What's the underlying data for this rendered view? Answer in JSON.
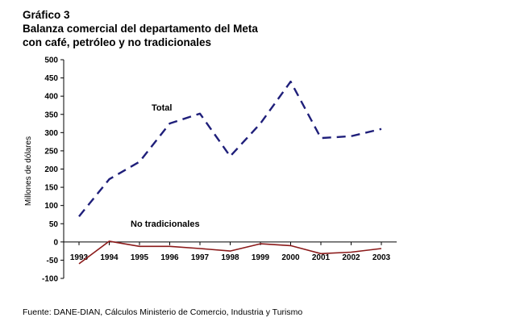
{
  "chart_data": {
    "type": "line",
    "title_lines": [
      "Gráfico 3",
      "Balanza comercial del departamento del Meta",
      "con café, petróleo y no tradicionales"
    ],
    "ylabel": "Millones de dólares",
    "xlabel": "",
    "ylim": [
      -100,
      500
    ],
    "yticks": [
      -100,
      -50,
      0,
      50,
      100,
      150,
      200,
      250,
      300,
      350,
      400,
      450,
      500
    ],
    "categories": [
      "1993",
      "1994",
      "1995",
      "1996",
      "1997",
      "1998",
      "1999",
      "2000",
      "2001",
      "2002",
      "2003"
    ],
    "series": [
      {
        "name": "Total",
        "color": "#1f1f7a",
        "style": "dashed",
        "values": [
          70,
          172,
          220,
          325,
          352,
          235,
          325,
          440,
          285,
          290,
          310
        ]
      },
      {
        "name": "No tradicionales",
        "color": "#8b1a1a",
        "style": "solid",
        "values": [
          -60,
          2,
          -12,
          -12,
          -18,
          -25,
          -5,
          -10,
          -32,
          -28,
          -18
        ]
      }
    ],
    "grid": false,
    "legend": "inline labels"
  },
  "source": "Fuente: DANE-DIAN, Cálculos Ministerio de Comercio, Industria y Turismo"
}
